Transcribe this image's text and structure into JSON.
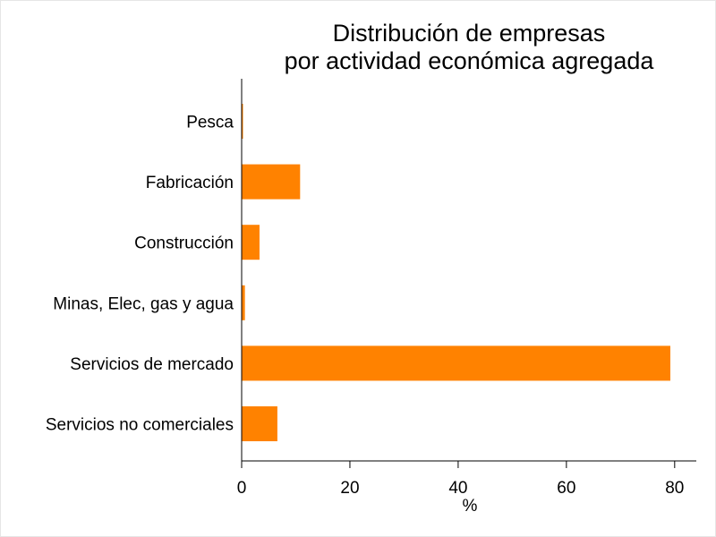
{
  "chart_data": {
    "type": "bar",
    "orientation": "horizontal",
    "title": [
      "Distribución de empresas",
      "por actividad económica agregada"
    ],
    "categories": [
      "Pesca",
      "Fabricación",
      "Construcción",
      "Minas, Elec, gas y agua",
      "Servicios de mercado",
      "Servicios no comerciales"
    ],
    "values": [
      0.2,
      10.8,
      3.3,
      0.6,
      79.2,
      6.6
    ],
    "xlabel": "%",
    "ylabel": "",
    "xlim": [
      0,
      84
    ],
    "xticks": [
      0,
      20,
      40,
      60,
      80
    ],
    "grid": false,
    "bar_color": "#ff8200"
  }
}
